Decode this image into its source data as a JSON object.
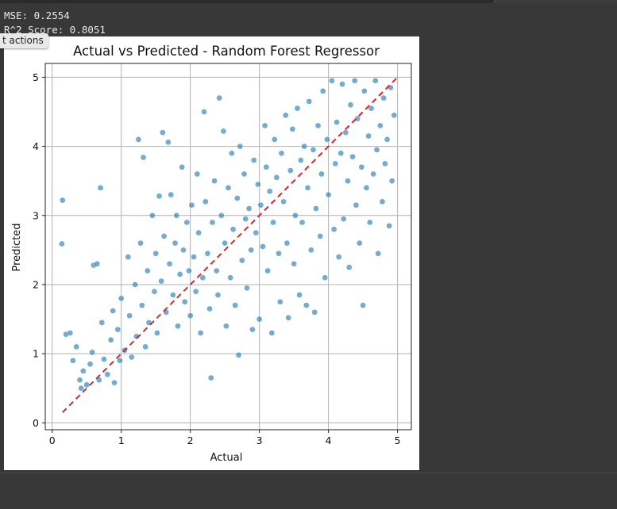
{
  "console": {
    "mse_line": "MSE: 0.2554",
    "r2_line": "R^2 Score: 0.8051"
  },
  "tooltip": {
    "label": "t actions"
  },
  "colors": {
    "points": "#1f77b4",
    "reference_line": "#d62728",
    "grid": "#b0b0b0"
  },
  "chart_data": {
    "type": "scatter",
    "title": "Actual vs Predicted - Random Forest Regressor",
    "xlabel": "Actual",
    "ylabel": "Predicted",
    "xlim": [
      -0.1,
      5.2
    ],
    "ylim": [
      -0.1,
      5.2
    ],
    "xticks": [
      0,
      1,
      2,
      3,
      4,
      5
    ],
    "yticks": [
      0,
      1,
      2,
      3,
      4,
      5
    ],
    "grid": true,
    "series": [
      {
        "kind": "scatter",
        "points": [
          [
            0.15,
            3.22
          ],
          [
            0.14,
            2.59
          ],
          [
            0.2,
            1.28
          ],
          [
            0.26,
            1.3
          ],
          [
            0.3,
            0.9
          ],
          [
            0.35,
            1.1
          ],
          [
            0.4,
            0.62
          ],
          [
            0.42,
            0.5
          ],
          [
            0.45,
            0.75
          ],
          [
            0.5,
            0.55
          ],
          [
            0.55,
            0.85
          ],
          [
            0.58,
            1.02
          ],
          [
            0.6,
            2.28
          ],
          [
            0.65,
            2.3
          ],
          [
            0.68,
            0.62
          ],
          [
            0.7,
            3.4
          ],
          [
            0.72,
            1.45
          ],
          [
            0.75,
            0.92
          ],
          [
            0.8,
            0.7
          ],
          [
            0.85,
            1.2
          ],
          [
            0.88,
            1.62
          ],
          [
            0.9,
            0.58
          ],
          [
            0.95,
            1.35
          ],
          [
            0.98,
            0.9
          ],
          [
            1.0,
            1.8
          ],
          [
            1.05,
            1.05
          ],
          [
            1.1,
            2.4
          ],
          [
            1.12,
            1.55
          ],
          [
            1.15,
            0.95
          ],
          [
            1.2,
            2.0
          ],
          [
            1.22,
            1.25
          ],
          [
            1.25,
            4.1
          ],
          [
            1.28,
            2.6
          ],
          [
            1.3,
            1.7
          ],
          [
            1.32,
            3.84
          ],
          [
            1.35,
            1.1
          ],
          [
            1.38,
            2.2
          ],
          [
            1.4,
            1.45
          ],
          [
            1.45,
            3.0
          ],
          [
            1.48,
            1.9
          ],
          [
            1.5,
            2.45
          ],
          [
            1.52,
            1.3
          ],
          [
            1.55,
            3.28
          ],
          [
            1.58,
            2.05
          ],
          [
            1.6,
            4.2
          ],
          [
            1.62,
            2.7
          ],
          [
            1.65,
            1.6
          ],
          [
            1.68,
            4.06
          ],
          [
            1.7,
            2.3
          ],
          [
            1.72,
            3.3
          ],
          [
            1.75,
            1.85
          ],
          [
            1.78,
            2.6
          ],
          [
            1.8,
            3.0
          ],
          [
            1.82,
            1.4
          ],
          [
            1.85,
            2.15
          ],
          [
            1.88,
            3.7
          ],
          [
            1.9,
            2.5
          ],
          [
            1.92,
            1.75
          ],
          [
            1.95,
            2.9
          ],
          [
            1.98,
            2.2
          ],
          [
            2.0,
            1.55
          ],
          [
            2.02,
            3.15
          ],
          [
            2.05,
            2.4
          ],
          [
            2.08,
            1.9
          ],
          [
            2.1,
            3.6
          ],
          [
            2.12,
            2.75
          ],
          [
            2.15,
            1.3
          ],
          [
            2.18,
            2.1
          ],
          [
            2.2,
            4.5
          ],
          [
            2.22,
            3.2
          ],
          [
            2.25,
            2.45
          ],
          [
            2.28,
            1.65
          ],
          [
            2.3,
            0.65
          ],
          [
            2.32,
            2.9
          ],
          [
            2.35,
            3.5
          ],
          [
            2.38,
            2.2
          ],
          [
            2.4,
            1.85
          ],
          [
            2.42,
            4.7
          ],
          [
            2.45,
            3.0
          ],
          [
            2.48,
            4.22
          ],
          [
            2.5,
            2.6
          ],
          [
            2.52,
            1.4
          ],
          [
            2.55,
            3.4
          ],
          [
            2.58,
            2.1
          ],
          [
            2.6,
            3.9
          ],
          [
            2.62,
            2.8
          ],
          [
            2.65,
            1.7
          ],
          [
            2.68,
            3.25
          ],
          [
            2.7,
            0.98
          ],
          [
            2.72,
            4.0
          ],
          [
            2.75,
            2.35
          ],
          [
            2.78,
            3.6
          ],
          [
            2.8,
            2.95
          ],
          [
            2.82,
            1.95
          ],
          [
            2.85,
            3.1
          ],
          [
            2.88,
            2.5
          ],
          [
            2.9,
            1.35
          ],
          [
            2.92,
            3.8
          ],
          [
            2.95,
            2.75
          ],
          [
            2.98,
            3.45
          ],
          [
            3.0,
            1.5
          ],
          [
            3.02,
            3.15
          ],
          [
            3.05,
            2.55
          ],
          [
            3.08,
            4.3
          ],
          [
            3.1,
            3.7
          ],
          [
            3.12,
            2.2
          ],
          [
            3.15,
            3.35
          ],
          [
            3.18,
            1.3
          ],
          [
            3.2,
            2.9
          ],
          [
            3.22,
            4.1
          ],
          [
            3.25,
            3.55
          ],
          [
            3.28,
            2.45
          ],
          [
            3.3,
            1.75
          ],
          [
            3.32,
            3.9
          ],
          [
            3.35,
            3.2
          ],
          [
            3.38,
            4.45
          ],
          [
            3.4,
            2.6
          ],
          [
            3.42,
            1.52
          ],
          [
            3.45,
            3.65
          ],
          [
            3.48,
            4.25
          ],
          [
            3.5,
            2.3
          ],
          [
            3.52,
            3.0
          ],
          [
            3.55,
            4.55
          ],
          [
            3.58,
            1.85
          ],
          [
            3.6,
            3.8
          ],
          [
            3.62,
            2.9
          ],
          [
            3.65,
            4.0
          ],
          [
            3.68,
            1.7
          ],
          [
            3.7,
            3.4
          ],
          [
            3.72,
            4.65
          ],
          [
            3.75,
            2.5
          ],
          [
            3.78,
            3.95
          ],
          [
            3.8,
            1.6
          ],
          [
            3.82,
            3.1
          ],
          [
            3.85,
            4.3
          ],
          [
            3.88,
            2.7
          ],
          [
            3.9,
            3.6
          ],
          [
            3.92,
            4.8
          ],
          [
            3.95,
            2.1
          ],
          [
            3.98,
            4.1
          ],
          [
            4.0,
            3.3
          ],
          [
            4.05,
            4.95
          ],
          [
            4.08,
            2.8
          ],
          [
            4.1,
            3.75
          ],
          [
            4.12,
            4.35
          ],
          [
            4.15,
            2.4
          ],
          [
            4.18,
            3.9
          ],
          [
            4.2,
            4.9
          ],
          [
            4.22,
            2.95
          ],
          [
            4.25,
            4.2
          ],
          [
            4.28,
            3.5
          ],
          [
            4.3,
            2.25
          ],
          [
            4.32,
            4.6
          ],
          [
            4.35,
            3.85
          ],
          [
            4.38,
            4.95
          ],
          [
            4.4,
            3.15
          ],
          [
            4.42,
            4.4
          ],
          [
            4.45,
            2.6
          ],
          [
            4.48,
            3.7
          ],
          [
            4.5,
            1.7
          ],
          [
            4.52,
            4.8
          ],
          [
            4.55,
            3.4
          ],
          [
            4.58,
            4.15
          ],
          [
            4.6,
            2.9
          ],
          [
            4.62,
            4.55
          ],
          [
            4.65,
            3.6
          ],
          [
            4.68,
            4.95
          ],
          [
            4.7,
            3.95
          ],
          [
            4.72,
            2.45
          ],
          [
            4.75,
            4.3
          ],
          [
            4.78,
            3.2
          ],
          [
            4.8,
            4.7
          ],
          [
            4.82,
            3.75
          ],
          [
            4.85,
            4.1
          ],
          [
            4.88,
            2.85
          ],
          [
            4.9,
            4.85
          ],
          [
            4.92,
            3.5
          ],
          [
            4.95,
            4.45
          ]
        ]
      },
      {
        "kind": "reference_line",
        "style": "dashed",
        "points": [
          [
            0.15,
            0.15
          ],
          [
            5.0,
            5.0
          ]
        ]
      }
    ]
  }
}
